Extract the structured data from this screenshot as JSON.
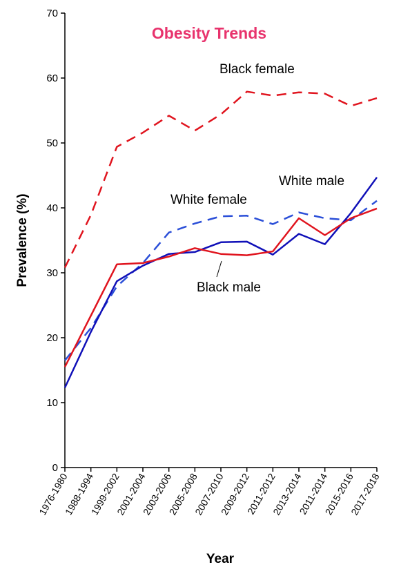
{
  "chart_data": {
    "type": "line",
    "title": "Obesity Trends",
    "title_color": "#e8336d",
    "xlabel": "Year",
    "ylabel": "Prevalence (%)",
    "ylim": [
      0,
      70
    ],
    "yticks": [
      0,
      10,
      20,
      30,
      40,
      50,
      60,
      70
    ],
    "grid": false,
    "categories": [
      "1976-1980",
      "1988-1994",
      "1999-2002",
      "2001-2004",
      "2003-2006",
      "2005-2008",
      "2007-2010",
      "2009-2012",
      "2011-2012",
      "2013-2014",
      "2011-2014",
      "2015-2016",
      "2017-2018"
    ],
    "series": [
      {
        "name": "Black female",
        "color": "#e0141e",
        "dash": "dashed",
        "values": [
          30.8,
          38.9,
          49.4,
          51.6,
          54.2,
          51.9,
          54.4,
          57.9,
          57.3,
          57.8,
          57.6,
          55.7,
          56.9
        ]
      },
      {
        "name": "White female",
        "color": "#2b4fd8",
        "dash": "dashed",
        "values": [
          16.5,
          21.5,
          27.9,
          31.5,
          36.2,
          37.6,
          38.7,
          38.8,
          37.5,
          39.3,
          38.4,
          38.1,
          41.1
        ]
      },
      {
        "name": "White male",
        "color": "#1010b8",
        "dash": "solid",
        "values": [
          12.3,
          20.9,
          28.7,
          31.1,
          32.9,
          33.2,
          34.7,
          34.8,
          32.8,
          36.0,
          34.4,
          39.2,
          44.7
        ]
      },
      {
        "name": "Black male",
        "color": "#e0141e",
        "dash": "solid",
        "values": [
          15.5,
          23.4,
          31.3,
          31.5,
          32.5,
          33.8,
          32.9,
          32.7,
          33.3,
          38.4,
          35.8,
          38.4,
          39.9
        ]
      }
    ]
  }
}
